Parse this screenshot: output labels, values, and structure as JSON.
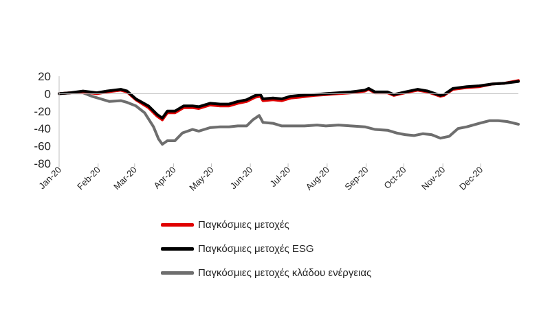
{
  "chart_data": {
    "type": "line",
    "title": "",
    "xlabel": "",
    "ylabel": "",
    "ylim": [
      -80,
      20
    ],
    "yticks": [
      20,
      0,
      -20,
      -40,
      -60,
      -80
    ],
    "x_tick_labels": [
      "Jan-20",
      "Feb-20",
      "Mar-20",
      "Apr-20",
      "May-20",
      "Jun-20",
      "Jul-20",
      "Aug-20",
      "Sep-20",
      "Oct-20",
      "Nov-20",
      "Dec-20"
    ],
    "grid": false,
    "legend_position": "bottom",
    "series": [
      {
        "name": "Παγκόσμιες μετοχές",
        "color": "#e00000",
        "points": [
          [
            "2020-01-01",
            0
          ],
          [
            "2020-01-10",
            1
          ],
          [
            "2020-01-20",
            2
          ],
          [
            "2020-01-31",
            0
          ],
          [
            "2020-02-08",
            2
          ],
          [
            "2020-02-19",
            4
          ],
          [
            "2020-02-24",
            2
          ],
          [
            "2020-03-02",
            -7
          ],
          [
            "2020-03-12",
            -16
          ],
          [
            "2020-03-19",
            -26
          ],
          [
            "2020-03-23",
            -30
          ],
          [
            "2020-03-27",
            -22
          ],
          [
            "2020-04-02",
            -22
          ],
          [
            "2020-04-09",
            -16
          ],
          [
            "2020-04-16",
            -16
          ],
          [
            "2020-04-21",
            -17
          ],
          [
            "2020-04-30",
            -13
          ],
          [
            "2020-05-08",
            -14
          ],
          [
            "2020-05-15",
            -14
          ],
          [
            "2020-05-22",
            -11
          ],
          [
            "2020-05-29",
            -9
          ],
          [
            "2020-06-05",
            -4
          ],
          [
            "2020-06-09",
            -3
          ],
          [
            "2020-06-11",
            -8
          ],
          [
            "2020-06-19",
            -7
          ],
          [
            "2020-06-26",
            -8
          ],
          [
            "2020-07-03",
            -5
          ],
          [
            "2020-07-10",
            -4
          ],
          [
            "2020-07-22",
            -2
          ],
          [
            "2020-07-31",
            -1
          ],
          [
            "2020-08-10",
            0
          ],
          [
            "2020-08-20",
            1
          ],
          [
            "2020-08-31",
            3
          ],
          [
            "2020-09-03",
            5
          ],
          [
            "2020-09-08",
            1
          ],
          [
            "2020-09-18",
            1
          ],
          [
            "2020-09-23",
            -2
          ],
          [
            "2020-10-02",
            1
          ],
          [
            "2020-10-12",
            4
          ],
          [
            "2020-10-20",
            2
          ],
          [
            "2020-10-30",
            -3
          ],
          [
            "2020-11-02",
            -2
          ],
          [
            "2020-11-09",
            5
          ],
          [
            "2020-11-20",
            7
          ],
          [
            "2020-11-30",
            8
          ],
          [
            "2020-12-10",
            11
          ],
          [
            "2020-12-20",
            12
          ],
          [
            "2020-12-31",
            15
          ]
        ]
      },
      {
        "name": "Παγκόσμιες μετοχές ESG",
        "color": "#000000",
        "points": [
          [
            "2020-01-01",
            0
          ],
          [
            "2020-01-10",
            1
          ],
          [
            "2020-01-20",
            3
          ],
          [
            "2020-01-31",
            1
          ],
          [
            "2020-02-08",
            3
          ],
          [
            "2020-02-19",
            5
          ],
          [
            "2020-02-24",
            3
          ],
          [
            "2020-03-02",
            -6
          ],
          [
            "2020-03-12",
            -14
          ],
          [
            "2020-03-19",
            -24
          ],
          [
            "2020-03-23",
            -28
          ],
          [
            "2020-03-27",
            -20
          ],
          [
            "2020-04-02",
            -20
          ],
          [
            "2020-04-09",
            -14
          ],
          [
            "2020-04-16",
            -14
          ],
          [
            "2020-04-21",
            -15
          ],
          [
            "2020-04-30",
            -11
          ],
          [
            "2020-05-08",
            -12
          ],
          [
            "2020-05-15",
            -12
          ],
          [
            "2020-05-22",
            -9
          ],
          [
            "2020-05-29",
            -7
          ],
          [
            "2020-06-05",
            -2
          ],
          [
            "2020-06-09",
            -1
          ],
          [
            "2020-06-11",
            -6
          ],
          [
            "2020-06-19",
            -5
          ],
          [
            "2020-06-26",
            -6
          ],
          [
            "2020-07-03",
            -3
          ],
          [
            "2020-07-10",
            -2
          ],
          [
            "2020-07-22",
            -1
          ],
          [
            "2020-07-31",
            0
          ],
          [
            "2020-08-10",
            1
          ],
          [
            "2020-08-20",
            2
          ],
          [
            "2020-08-31",
            4
          ],
          [
            "2020-09-03",
            6
          ],
          [
            "2020-09-08",
            2
          ],
          [
            "2020-09-18",
            2
          ],
          [
            "2020-09-23",
            -1
          ],
          [
            "2020-10-02",
            2
          ],
          [
            "2020-10-12",
            5
          ],
          [
            "2020-10-20",
            3
          ],
          [
            "2020-10-30",
            -2
          ],
          [
            "2020-11-02",
            -1
          ],
          [
            "2020-11-09",
            6
          ],
          [
            "2020-11-20",
            8
          ],
          [
            "2020-11-30",
            9
          ],
          [
            "2020-12-10",
            11
          ],
          [
            "2020-12-20",
            12
          ],
          [
            "2020-12-31",
            14
          ]
        ]
      },
      {
        "name": "Παγκόσμιες μετοχές κλάδου ενέργειας",
        "color": "#6e6e6e",
        "points": [
          [
            "2020-01-01",
            0
          ],
          [
            "2020-01-10",
            1
          ],
          [
            "2020-01-20",
            1
          ],
          [
            "2020-01-27",
            -3
          ],
          [
            "2020-02-03",
            -6
          ],
          [
            "2020-02-10",
            -9
          ],
          [
            "2020-02-19",
            -8
          ],
          [
            "2020-02-24",
            -10
          ],
          [
            "2020-03-02",
            -14
          ],
          [
            "2020-03-09",
            -22
          ],
          [
            "2020-03-16",
            -38
          ],
          [
            "2020-03-20",
            -52
          ],
          [
            "2020-03-23",
            -58
          ],
          [
            "2020-03-27",
            -54
          ],
          [
            "2020-04-02",
            -54
          ],
          [
            "2020-04-08",
            -45
          ],
          [
            "2020-04-16",
            -41
          ],
          [
            "2020-04-21",
            -43
          ],
          [
            "2020-04-30",
            -39
          ],
          [
            "2020-05-08",
            -38
          ],
          [
            "2020-05-15",
            -38
          ],
          [
            "2020-05-22",
            -37
          ],
          [
            "2020-05-29",
            -37
          ],
          [
            "2020-06-03",
            -30
          ],
          [
            "2020-06-08",
            -25
          ],
          [
            "2020-06-11",
            -33
          ],
          [
            "2020-06-19",
            -34
          ],
          [
            "2020-06-26",
            -37
          ],
          [
            "2020-07-03",
            -37
          ],
          [
            "2020-07-14",
            -37
          ],
          [
            "2020-07-24",
            -36
          ],
          [
            "2020-07-31",
            -37
          ],
          [
            "2020-08-10",
            -36
          ],
          [
            "2020-08-20",
            -37
          ],
          [
            "2020-08-31",
            -38
          ],
          [
            "2020-09-08",
            -41
          ],
          [
            "2020-09-18",
            -42
          ],
          [
            "2020-09-25",
            -45
          ],
          [
            "2020-10-02",
            -47
          ],
          [
            "2020-10-09",
            -48
          ],
          [
            "2020-10-16",
            -46
          ],
          [
            "2020-10-23",
            -47
          ],
          [
            "2020-10-30",
            -51
          ],
          [
            "2020-11-06",
            -49
          ],
          [
            "2020-11-13",
            -40
          ],
          [
            "2020-11-20",
            -38
          ],
          [
            "2020-11-30",
            -34
          ],
          [
            "2020-12-08",
            -31
          ],
          [
            "2020-12-15",
            -31
          ],
          [
            "2020-12-22",
            -32
          ],
          [
            "2020-12-31",
            -35
          ]
        ]
      }
    ]
  }
}
